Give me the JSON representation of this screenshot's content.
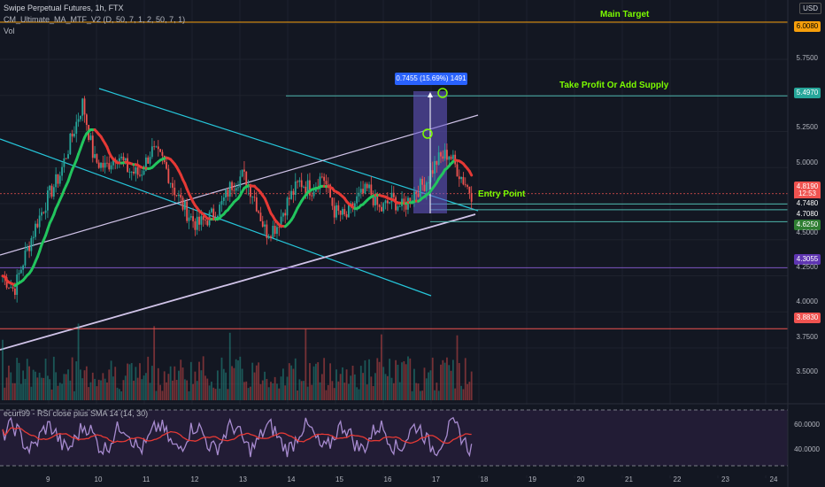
{
  "header": {
    "title": "Swipe Perpetual Futures, 1h, FTX",
    "indicator": "CM_Ultimate_MA_MTF_V2 (D, 50, 7, 1, 2, 50, 7, 1)",
    "volume": "Vol",
    "currency": "USD"
  },
  "annotations": {
    "main_target": "Main Target",
    "take_profit": "Take Profit Or Add Supply",
    "entry_point": "Entry Point",
    "measure": "0.7455 (15.69%) 1491"
  },
  "colors": {
    "background": "#131722",
    "bull": "#26a69a",
    "bear": "#ef5350",
    "ma_red": "#e53935",
    "ma_green": "#22c55e",
    "channel": "#26c6da",
    "trendline": "#d1c4e9",
    "main_target": "#f59e0b",
    "take_profit": "#4db6ac",
    "support": "#7e57c2",
    "red_level": "#ef5350",
    "measure_box": "#6a5acd"
  },
  "price_axis": {
    "ticks": [
      "6.0080",
      "5.7500",
      "5.4970",
      "5.2500",
      "5.0000",
      "4.8190",
      "12:53",
      "4.7480",
      "4.7080",
      "4.6250",
      "4.5000",
      "4.3055",
      "4.2500",
      "4.0000",
      "3.8830",
      "3.7500",
      "3.5000"
    ],
    "tagged": [
      {
        "label": "6.0080",
        "color": "#f59e0b",
        "text": "#000000"
      },
      {
        "label": "5.4970",
        "color": "#26a69a",
        "text": "#ffffff"
      },
      {
        "label": "4.8190",
        "color": "#ef5350",
        "text": "#ffffff"
      },
      {
        "label": "12:53",
        "color": "#ef5350",
        "text": "#ffffff"
      },
      {
        "label": "4.7480",
        "color": "#131722",
        "text": "#ffffff"
      },
      {
        "label": "4.7080",
        "color": "#131722",
        "text": "#ffffff"
      },
      {
        "label": "4.6250",
        "color": "#2e7d32",
        "text": "#ffffff"
      },
      {
        "label": "4.3055",
        "color": "#5e35b1",
        "text": "#ffffff"
      },
      {
        "label": "3.8830",
        "color": "#ef5350",
        "text": "#ffffff"
      }
    ]
  },
  "rsi_panel": {
    "title": "ecurt99 - RSI close plus SMA 14 (14, 30)",
    "ticks": [
      "60.0000",
      "40.0000"
    ]
  },
  "time_axis": [
    "9",
    "10",
    "11",
    "12",
    "13",
    "14",
    "15",
    "16",
    "17",
    "18",
    "19",
    "20",
    "21",
    "22",
    "23",
    "24"
  ],
  "chart_data": {
    "type": "candlestick",
    "title": "Swipe Perpetual Futures, 1h, FTX",
    "ylim": [
      3.4,
      6.1
    ],
    "x_days": [
      "9",
      "10",
      "11",
      "12",
      "13",
      "14",
      "15",
      "16",
      "17",
      "18",
      "19",
      "20",
      "21",
      "22",
      "23",
      "24"
    ],
    "levels": [
      {
        "name": "Main Target",
        "value": 6.008
      },
      {
        "name": "Take Profit Or Add Supply",
        "value": 5.497
      },
      {
        "name": "Entry Point",
        "value": 4.748
      },
      {
        "value": 4.708
      },
      {
        "value": 4.625
      },
      {
        "value": 4.3055
      },
      {
        "value": 3.883
      }
    ],
    "last_price": 4.819,
    "closes": [
      4.25,
      4.15,
      4.4,
      4.62,
      4.8,
      4.95,
      5.2,
      5.45,
      5.05,
      5.0,
      5.1,
      4.98,
      4.95,
      5.12,
      5.05,
      4.85,
      4.7,
      4.6,
      4.65,
      4.72,
      4.88,
      4.95,
      4.8,
      4.55,
      4.6,
      4.78,
      4.9,
      4.85,
      4.95,
      4.7,
      4.65,
      4.78,
      4.85,
      4.7,
      4.78,
      4.72,
      4.83,
      4.9,
      5.05,
      5.1,
      4.95,
      4.82
    ],
    "measure": {
      "change": 0.7455,
      "percent": 15.69,
      "bars": 1491
    }
  }
}
